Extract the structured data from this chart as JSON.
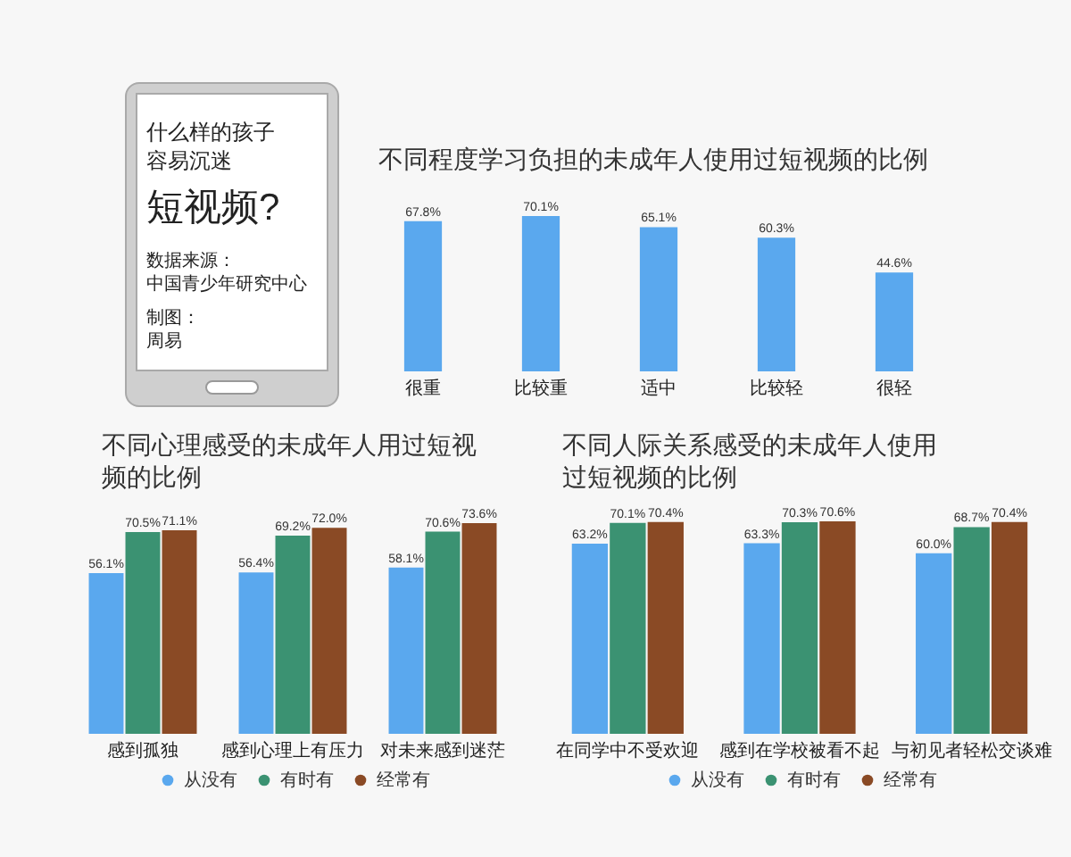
{
  "chart_data": [
    {
      "type": "other",
      "title": "什么样的孩子容易沉迷",
      "subtitle": "短视频?",
      "annotations": [
        "数据来源：",
        "中国青少年研究中心",
        "制图：",
        "周易"
      ]
    },
    {
      "type": "bar",
      "title": "不同程度学习负担的未成年人使用过短视频的比例",
      "categories": [
        "很重",
        "比较重",
        "适中",
        "比较轻",
        "很轻"
      ],
      "values": [
        67.8,
        70.1,
        65.1,
        60.3,
        44.6
      ],
      "value_labels": [
        "67.8%",
        "70.1%",
        "65.1%",
        "60.3%",
        "44.6%"
      ],
      "color": "#5aa8ee",
      "tick_labels": "x"
    },
    {
      "type": "bar",
      "title": "不同心理感受的未成年人用过短视频的比例",
      "categories": [
        "感到孤独",
        "感到心理上有压力",
        "对未来感到迷茫"
      ],
      "series": [
        {
          "name": "从没有",
          "color": "#5aa8ee",
          "values": [
            56.1,
            56.4,
            58.1
          ],
          "value_labels": [
            "56.1%",
            "56.4%",
            "58.1%"
          ]
        },
        {
          "name": "有时有",
          "color": "#3b9272",
          "values": [
            70.5,
            69.2,
            70.6
          ],
          "value_labels": [
            "70.5%",
            "69.2%",
            "70.6%"
          ]
        },
        {
          "name": "经常有",
          "color": "#8a4a25",
          "values": [
            71.1,
            72.0,
            73.6
          ],
          "value_labels": [
            "71.1%",
            "72.0%",
            "73.6%"
          ]
        }
      ],
      "tick_labels": "x",
      "legend": "bottom"
    },
    {
      "type": "bar",
      "title": "不同人际关系感受的未成年人使用过短视频的比例",
      "categories": [
        "在同学中不受欢迎",
        "感到在学校被看不起",
        "与初见者轻松交谈难"
      ],
      "series": [
        {
          "name": "从没有",
          "color": "#5aa8ee",
          "values": [
            63.2,
            63.3,
            60.0
          ],
          "value_labels": [
            "63.2%",
            "63.3%",
            "60.0%"
          ]
        },
        {
          "name": "有时有",
          "color": "#3b9272",
          "values": [
            70.1,
            70.3,
            68.7
          ],
          "value_labels": [
            "70.1%",
            "70.3%",
            "68.7%"
          ]
        },
        {
          "name": "经常有",
          "color": "#8a4a25",
          "values": [
            70.4,
            70.6,
            70.4
          ],
          "value_labels": [
            "70.4%",
            "70.6%",
            "70.4%"
          ]
        }
      ],
      "tick_labels": "x",
      "legend": "bottom"
    }
  ]
}
